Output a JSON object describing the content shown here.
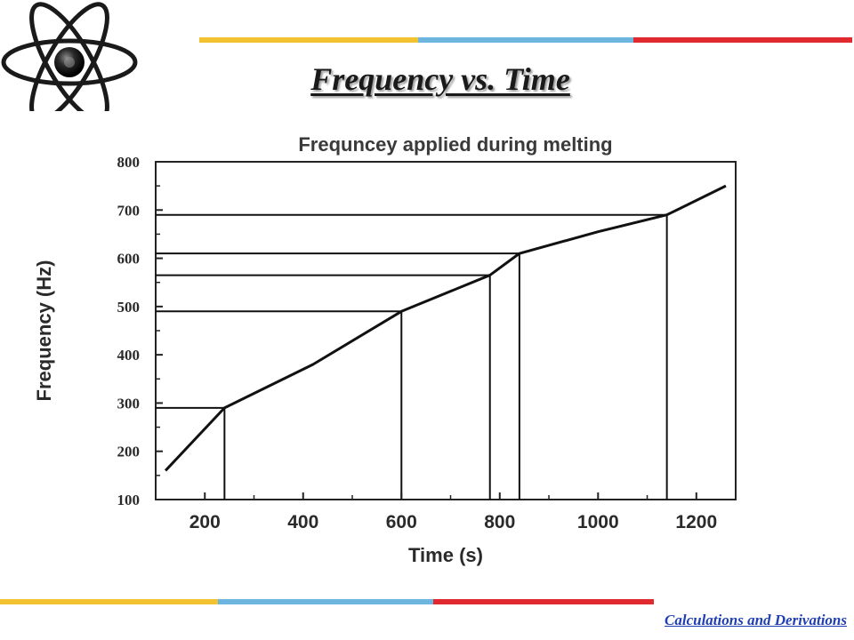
{
  "slide": {
    "title": "Frequency  vs. Time",
    "footer_link": "Calculations and Derivations"
  },
  "logo": {
    "icon": "atom-icon"
  },
  "colors": {
    "stripe_yellow": "#f2c230",
    "stripe_blue": "#6cb6df",
    "stripe_red": "#e02a2f",
    "link": "#1f3fb3"
  },
  "chart_data": {
    "type": "line",
    "title": "Frequncey applied during melting",
    "xlabel": "Time (s)",
    "ylabel": "Frequency (Hz)",
    "xlim": [
      100,
      1280
    ],
    "ylim": [
      100,
      800
    ],
    "x_ticks": [
      200,
      400,
      600,
      800,
      1000,
      1200
    ],
    "y_ticks": [
      100,
      200,
      300,
      400,
      500,
      600,
      700,
      800
    ],
    "grid": false,
    "series": [
      {
        "x": [
          120,
          240,
          420,
          600,
          780,
          840,
          1000,
          1140,
          1260
        ],
        "y": [
          160,
          290,
          380,
          490,
          565,
          610,
          655,
          690,
          750
        ]
      }
    ],
    "reference_points": [
      {
        "x": 240,
        "y": 290
      },
      {
        "x": 600,
        "y": 490
      },
      {
        "x": 780,
        "y": 565
      },
      {
        "x": 840,
        "y": 610
      },
      {
        "x": 1140,
        "y": 690
      }
    ]
  }
}
